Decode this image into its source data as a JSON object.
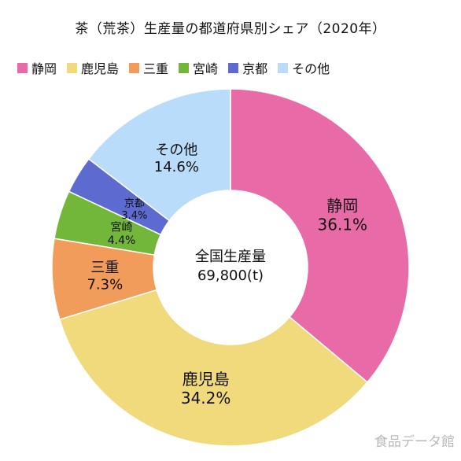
{
  "chart_data": {
    "type": "pie",
    "title": "茶（荒茶）生産量の都道府県別シェア（2020年）",
    "center_label_line1": "全国生産量",
    "center_label_line2": "69,800(t)",
    "legend_position": "top",
    "categories": [
      "静岡",
      "鹿児島",
      "三重",
      "宮崎",
      "京都",
      "その他"
    ],
    "values": [
      36.1,
      34.2,
      7.3,
      4.4,
      3.4,
      14.6
    ],
    "value_labels": [
      "36.1%",
      "34.2%",
      "7.3%",
      "4.4%",
      "3.4%",
      "14.6%"
    ],
    "colors": [
      "#e86aa6",
      "#f0da7c",
      "#f19c5a",
      "#72b63a",
      "#5d6bd0",
      "#badcfb"
    ]
  },
  "watermark": "食品データ館"
}
